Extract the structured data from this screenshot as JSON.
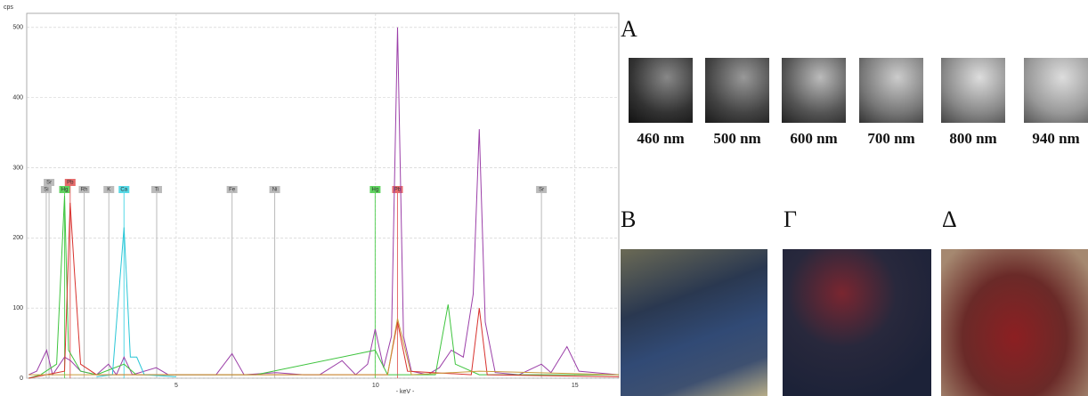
{
  "chart_data": {
    "type": "line",
    "ylabel": "cps",
    "xlabel": "- keV -",
    "xlim": [
      1.25,
      16.1
    ],
    "xticks": [
      5,
      10,
      15
    ],
    "ylim": [
      0,
      520
    ],
    "yticks": [
      0,
      100,
      200,
      300,
      400,
      500
    ],
    "grid": true,
    "series": [
      {
        "color": "#9b3fa8",
        "x": [
          1.3,
          1.5,
          1.75,
          1.9,
          2.2,
          2.35,
          2.6,
          3.0,
          3.3,
          3.5,
          3.69,
          3.9,
          4.5,
          4.8,
          5.5,
          6.0,
          6.4,
          6.7,
          7.5,
          8.2,
          8.6,
          9.16,
          9.5,
          9.8,
          9.99,
          10.2,
          10.4,
          10.55,
          10.7,
          10.9,
          11.3,
          11.6,
          11.9,
          12.2,
          12.45,
          12.6,
          12.75,
          13.0,
          13.6,
          14.16,
          14.4,
          14.8,
          15.1,
          15.5,
          16.1
        ],
        "values": [
          5,
          10,
          40,
          5,
          30,
          25,
          10,
          5,
          20,
          5,
          30,
          5,
          15,
          5,
          5,
          5,
          35,
          5,
          8,
          5,
          5,
          25,
          5,
          20,
          70,
          15,
          60,
          500,
          60,
          10,
          5,
          15,
          40,
          30,
          120,
          355,
          80,
          8,
          5,
          20,
          8,
          45,
          10,
          8,
          5
        ]
      },
      {
        "color": "#3ec43e",
        "x": [
          1.3,
          1.6,
          2.0,
          2.2,
          2.3,
          2.6,
          3.0,
          3.69,
          4.0,
          7.0,
          9.99,
          10.3,
          11.5,
          11.82,
          12.0,
          12.6,
          16.1
        ],
        "values": [
          0,
          5,
          20,
          260,
          40,
          10,
          5,
          20,
          5,
          5,
          40,
          5,
          5,
          105,
          20,
          5,
          5
        ]
      },
      {
        "color": "#d8322e",
        "x": [
          1.3,
          2.2,
          2.34,
          2.45,
          2.6,
          3.0,
          10.3,
          10.55,
          10.8,
          12.4,
          12.6,
          12.8,
          16.1
        ],
        "values": [
          0,
          10,
          250,
          150,
          20,
          5,
          5,
          80,
          10,
          5,
          100,
          5,
          2
        ]
      },
      {
        "color": "#29c6d6",
        "x": [
          3.0,
          3.4,
          3.69,
          3.85,
          4.01,
          4.2,
          5.0
        ],
        "values": [
          2,
          5,
          215,
          30,
          30,
          5,
          2
        ]
      },
      {
        "color": "#c99a3a",
        "x": [
          1.3,
          10.3,
          10.55,
          10.9,
          12.6,
          16.1
        ],
        "values": [
          5,
          5,
          85,
          5,
          10,
          5
        ]
      }
    ],
    "element_markers": [
      {
        "label": "Si",
        "x": 1.74,
        "color": "#bbbbbb"
      },
      {
        "label": "Sr",
        "x": 1.81,
        "color": "#bbbbbb"
      },
      {
        "label": "Hg",
        "x": 2.2,
        "color": "#5fd35f"
      },
      {
        "label": "Pb",
        "x": 2.34,
        "color": "#e66b6b"
      },
      {
        "label": "Rh",
        "x": 2.69,
        "color": "#bbbbbb"
      },
      {
        "label": "K",
        "x": 3.31,
        "color": "#bbbbbb"
      },
      {
        "label": "Ca",
        "x": 3.69,
        "color": "#57d9e6"
      },
      {
        "label": "Ti",
        "x": 4.51,
        "color": "#bbbbbb"
      },
      {
        "label": "Fe",
        "x": 6.4,
        "color": "#bbbbbb"
      },
      {
        "label": "Ni",
        "x": 7.47,
        "color": "#bbbbbb"
      },
      {
        "label": "Hg",
        "x": 9.99,
        "color": "#5fd35f"
      },
      {
        "label": "Pb",
        "x": 10.55,
        "color": "#e66b6b"
      },
      {
        "label": "Sr",
        "x": 14.16,
        "color": "#bbbbbb"
      }
    ]
  },
  "panels": {
    "a_label": "A",
    "wavelengths": [
      "460 nm",
      "500 nm",
      "600 nm",
      "700 nm",
      "800 nm",
      "940 nm"
    ],
    "b_label": "B",
    "g_label": "Γ",
    "d_label": "Δ"
  }
}
